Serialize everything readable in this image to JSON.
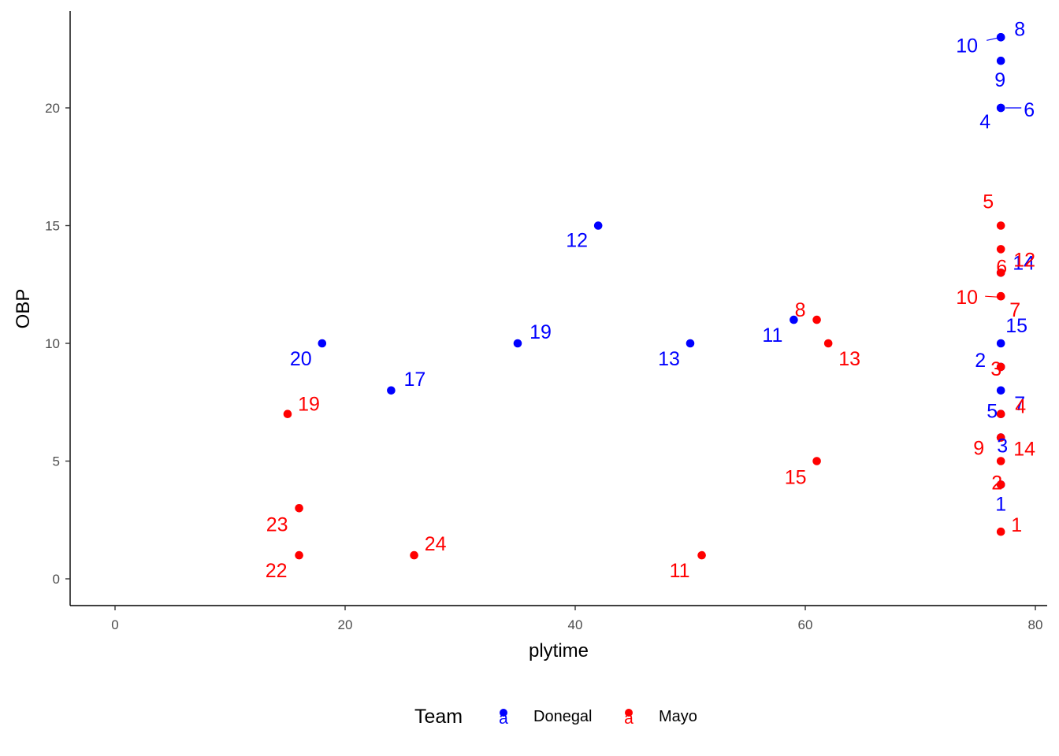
{
  "chart_data": {
    "type": "scatter",
    "xlabel": "plytime",
    "ylabel": "OBP",
    "xlim": [
      -4,
      81
    ],
    "ylim": [
      -1.1,
      24.2
    ],
    "x_ticks": [
      0,
      20,
      40,
      60,
      80
    ],
    "y_ticks": [
      0,
      5,
      10,
      15,
      20
    ],
    "grid": false,
    "legend": {
      "title": "Team",
      "position": "bottom",
      "key_glyph": "a",
      "entries": [
        {
          "name": "Donegal",
          "color": "#0000FF"
        },
        {
          "name": "Mayo",
          "color": "#FF0000"
        }
      ]
    },
    "series": [
      {
        "name": "Donegal",
        "color": "#0000FF",
        "points": [
          {
            "x": 77,
            "y": 4,
            "label": "1"
          },
          {
            "x": 77,
            "y": 9,
            "label": "2"
          },
          {
            "x": 77,
            "y": 6,
            "label": "3"
          },
          {
            "x": 77,
            "y": 20,
            "label": "4"
          },
          {
            "x": 77,
            "y": 7,
            "label": "5"
          },
          {
            "x": 77,
            "y": 20,
            "label": "6"
          },
          {
            "x": 77,
            "y": 8,
            "label": "7"
          },
          {
            "x": 77,
            "y": 23,
            "label": "8"
          },
          {
            "x": 77,
            "y": 22,
            "label": "9"
          },
          {
            "x": 77,
            "y": 23,
            "label": "10"
          },
          {
            "x": 59,
            "y": 11,
            "label": "11"
          },
          {
            "x": 42,
            "y": 15,
            "label": "12"
          },
          {
            "x": 50,
            "y": 10,
            "label": "13"
          },
          {
            "x": 77,
            "y": 13,
            "label": "14"
          },
          {
            "x": 77,
            "y": 10,
            "label": "15"
          },
          {
            "x": 24,
            "y": 8,
            "label": "17"
          },
          {
            "x": 35,
            "y": 10,
            "label": "19"
          },
          {
            "x": 18,
            "y": 10,
            "label": "20"
          }
        ]
      },
      {
        "name": "Mayo",
        "color": "#FF0000",
        "points": [
          {
            "x": 77,
            "y": 2,
            "label": "1"
          },
          {
            "x": 77,
            "y": 4,
            "label": "2"
          },
          {
            "x": 77,
            "y": 9,
            "label": "3"
          },
          {
            "x": 77,
            "y": 7,
            "label": "4"
          },
          {
            "x": 77,
            "y": 15,
            "label": "5"
          },
          {
            "x": 77,
            "y": 13,
            "label": "6"
          },
          {
            "x": 77,
            "y": 12,
            "label": "7"
          },
          {
            "x": 61,
            "y": 11,
            "label": "8"
          },
          {
            "x": 77,
            "y": 6,
            "label": "9"
          },
          {
            "x": 77,
            "y": 12,
            "label": "10"
          },
          {
            "x": 51,
            "y": 1,
            "label": "11"
          },
          {
            "x": 77,
            "y": 14,
            "label": "12"
          },
          {
            "x": 62,
            "y": 10,
            "label": "13"
          },
          {
            "x": 77,
            "y": 5,
            "label": "14"
          },
          {
            "x": 61,
            "y": 5,
            "label": "15"
          },
          {
            "x": 15,
            "y": 7,
            "label": "19"
          },
          {
            "x": 16,
            "y": 1,
            "label": "22"
          },
          {
            "x": 16,
            "y": 3,
            "label": "23"
          },
          {
            "x": 26,
            "y": 1,
            "label": "24"
          }
        ]
      }
    ]
  }
}
